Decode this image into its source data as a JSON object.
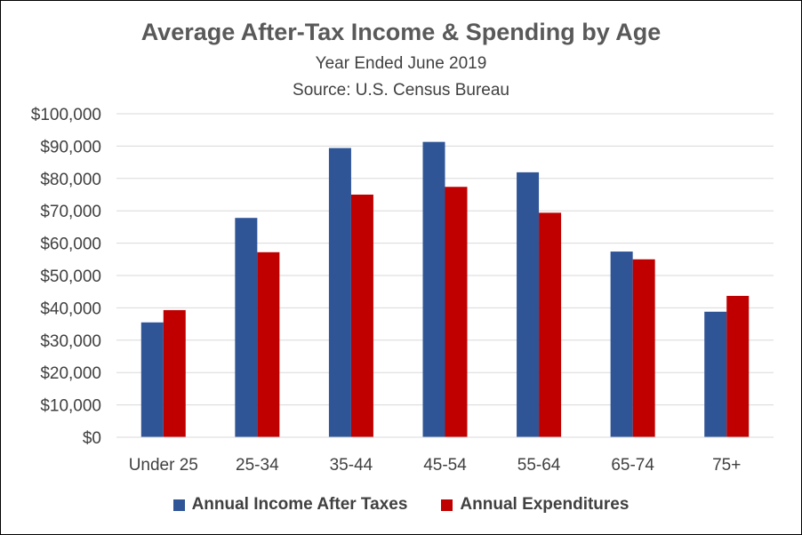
{
  "colors": {
    "income": "#2F5597",
    "expenditures": "#C00000",
    "grid": "#D9D9D9",
    "axis_text": "#404040"
  },
  "chart_data": {
    "type": "bar",
    "title": "Average After-Tax Income & Spending by Age",
    "subtitle": "Year Ended June 2019",
    "source": "Source:  U.S. Census Bureau",
    "xlabel": "",
    "ylabel": "",
    "ylim": [
      0,
      100000
    ],
    "yticks": [
      "$0",
      "$10,000",
      "$20,000",
      "$30,000",
      "$40,000",
      "$50,000",
      "$60,000",
      "$70,000",
      "$80,000",
      "$90,000",
      "$100,000"
    ],
    "ytick_values": [
      0,
      10000,
      20000,
      30000,
      40000,
      50000,
      60000,
      70000,
      80000,
      90000,
      100000
    ],
    "grid": true,
    "legend_position": "bottom",
    "categories": [
      "Under 25",
      "25-34",
      "35-44",
      "45-54",
      "55-64",
      "65-74",
      "75+"
    ],
    "series": [
      {
        "name": "Annual Income After Taxes",
        "color": "#2F5597",
        "values": [
          35500,
          67800,
          89400,
          91300,
          81900,
          57400,
          38800
        ]
      },
      {
        "name": "Annual Expenditures",
        "color": "#C00000",
        "values": [
          39300,
          57200,
          75000,
          77400,
          69400,
          55000,
          43700
        ]
      }
    ]
  }
}
